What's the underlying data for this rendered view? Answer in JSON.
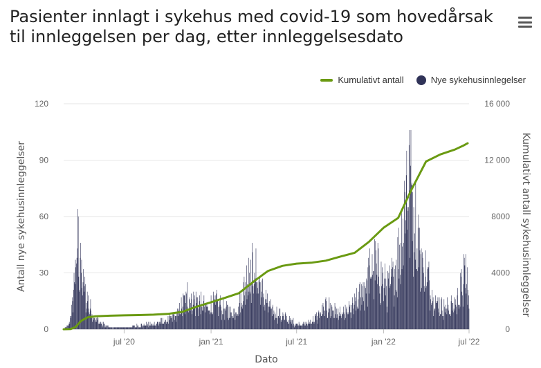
{
  "header": {
    "title": "Pasienter innlagt i sykehus med covid-19 som hovedårsak til innleggelsen per dag, etter innleggelsesdato",
    "menu_icon": "hamburger-menu-icon"
  },
  "legend": [
    {
      "label": "Kumulativt antall",
      "color": "#6a9a12",
      "shape": "line"
    },
    {
      "label": "Nye sykehusinnlegelser",
      "color": "#303358",
      "shape": "dot"
    }
  ],
  "chart_data": {
    "type": "bar+line",
    "title": "Pasienter innlagt i sykehus med covid-19 som hovedårsak til innleggelsen per dag, etter innleggelsesdato",
    "xlabel": "Dato",
    "ylabel_left": "Antall nye sykehusinnleggelser",
    "ylabel_right": "Kumulativt antall sykehusinnleggelser",
    "x_range": [
      "2020-02-24",
      "2022-07-01"
    ],
    "x_ticks": [
      {
        "date": "2020-07-01",
        "label": "jul '20"
      },
      {
        "date": "2021-01-01",
        "label": "jan '21"
      },
      {
        "date": "2021-07-01",
        "label": "jul '21"
      },
      {
        "date": "2022-01-01",
        "label": "jan '22"
      },
      {
        "date": "2022-07-01",
        "label": "jul '22"
      }
    ],
    "y_left": {
      "min": 0,
      "max": 120,
      "ticks": [
        "0",
        "30",
        "60",
        "90",
        "120"
      ]
    },
    "y_right": {
      "min": 0,
      "max": 16000,
      "ticks": [
        "0",
        "4000",
        "8000",
        "12 000",
        "16 000"
      ]
    },
    "grid": true,
    "legend_position": "top-right",
    "series": [
      {
        "name": "Nye sykehusinnlegelser",
        "kind": "bar",
        "axis": "left",
        "color": "#303358",
        "keypoints": [
          [
            "2020-02-24",
            0
          ],
          [
            "2020-03-05",
            2
          ],
          [
            "2020-03-12",
            10
          ],
          [
            "2020-03-18",
            28
          ],
          [
            "2020-03-22",
            37
          ],
          [
            "2020-03-25",
            50
          ],
          [
            "2020-03-28",
            35
          ],
          [
            "2020-04-02",
            30
          ],
          [
            "2020-04-10",
            20
          ],
          [
            "2020-04-20",
            12
          ],
          [
            "2020-05-01",
            6
          ],
          [
            "2020-05-15",
            3
          ],
          [
            "2020-06-01",
            1
          ],
          [
            "2020-07-01",
            1
          ],
          [
            "2020-08-01",
            2
          ],
          [
            "2020-09-01",
            3
          ],
          [
            "2020-10-01",
            5
          ],
          [
            "2020-10-20",
            8
          ],
          [
            "2020-11-05",
            15
          ],
          [
            "2020-11-20",
            17
          ],
          [
            "2020-12-10",
            14
          ],
          [
            "2020-12-25",
            12
          ],
          [
            "2021-01-10",
            15
          ],
          [
            "2021-01-31",
            11
          ],
          [
            "2021-02-15",
            9
          ],
          [
            "2021-03-01",
            13
          ],
          [
            "2021-03-12",
            22
          ],
          [
            "2021-03-20",
            31
          ],
          [
            "2021-03-28",
            33
          ],
          [
            "2021-04-08",
            30
          ],
          [
            "2021-04-20",
            20
          ],
          [
            "2021-05-05",
            12
          ],
          [
            "2021-05-20",
            9
          ],
          [
            "2021-06-10",
            6
          ],
          [
            "2021-07-01",
            3
          ],
          [
            "2021-07-20",
            3
          ],
          [
            "2021-08-05",
            5
          ],
          [
            "2021-08-20",
            9
          ],
          [
            "2021-09-05",
            13
          ],
          [
            "2021-09-20",
            10
          ],
          [
            "2021-10-05",
            8
          ],
          [
            "2021-10-25",
            11
          ],
          [
            "2021-11-10",
            17
          ],
          [
            "2021-11-25",
            26
          ],
          [
            "2021-12-05",
            32
          ],
          [
            "2021-12-15",
            35
          ],
          [
            "2021-12-28",
            28
          ],
          [
            "2022-01-10",
            22
          ],
          [
            "2022-01-22",
            30
          ],
          [
            "2022-02-03",
            42
          ],
          [
            "2022-02-10",
            58
          ],
          [
            "2022-02-17",
            75
          ],
          [
            "2022-02-24",
            80
          ],
          [
            "2022-03-04",
            72
          ],
          [
            "2022-03-12",
            55
          ],
          [
            "2022-03-22",
            40
          ],
          [
            "2022-04-05",
            28
          ],
          [
            "2022-04-20",
            17
          ],
          [
            "2022-05-05",
            12
          ],
          [
            "2022-05-20",
            12
          ],
          [
            "2022-06-05",
            15
          ],
          [
            "2022-06-15",
            23
          ],
          [
            "2022-06-22",
            30
          ],
          [
            "2022-06-27",
            28
          ],
          [
            "2022-07-01",
            10
          ]
        ],
        "peaks": [
          [
            "2020-03-26",
            60
          ],
          [
            "2020-03-30",
            38
          ],
          [
            "2020-03-20",
            37
          ],
          [
            "2020-11-12",
            25
          ],
          [
            "2021-03-22",
            38
          ],
          [
            "2021-03-26",
            37
          ],
          [
            "2021-12-08",
            40
          ],
          [
            "2022-02-19",
            95
          ],
          [
            "2022-02-24",
            98
          ],
          [
            "2022-02-27",
            87
          ],
          [
            "2022-06-24",
            40
          ]
        ]
      },
      {
        "name": "Kumulativt antall",
        "kind": "line",
        "axis": "right",
        "color": "#6a9a12",
        "points": [
          [
            "2020-02-24",
            0
          ],
          [
            "2020-03-10",
            15
          ],
          [
            "2020-03-20",
            150
          ],
          [
            "2020-04-01",
            600
          ],
          [
            "2020-04-15",
            850
          ],
          [
            "2020-05-01",
            920
          ],
          [
            "2020-06-01",
            960
          ],
          [
            "2020-07-01",
            985
          ],
          [
            "2020-08-01",
            1005
          ],
          [
            "2020-09-01",
            1035
          ],
          [
            "2020-10-01",
            1090
          ],
          [
            "2020-11-01",
            1230
          ],
          [
            "2020-12-01",
            1600
          ],
          [
            "2021-01-01",
            1920
          ],
          [
            "2021-02-01",
            2250
          ],
          [
            "2021-03-01",
            2560
          ],
          [
            "2021-04-01",
            3380
          ],
          [
            "2021-05-01",
            4130
          ],
          [
            "2021-06-01",
            4500
          ],
          [
            "2021-07-01",
            4660
          ],
          [
            "2021-08-01",
            4720
          ],
          [
            "2021-09-01",
            4870
          ],
          [
            "2021-10-01",
            5150
          ],
          [
            "2021-11-01",
            5430
          ],
          [
            "2021-12-01",
            6200
          ],
          [
            "2022-01-01",
            7200
          ],
          [
            "2022-02-01",
            7900
          ],
          [
            "2022-03-01",
            9900
          ],
          [
            "2022-04-01",
            11900
          ],
          [
            "2022-05-01",
            12400
          ],
          [
            "2022-06-01",
            12750
          ],
          [
            "2022-06-20",
            13050
          ],
          [
            "2022-06-28",
            13200
          ]
        ]
      }
    ]
  }
}
